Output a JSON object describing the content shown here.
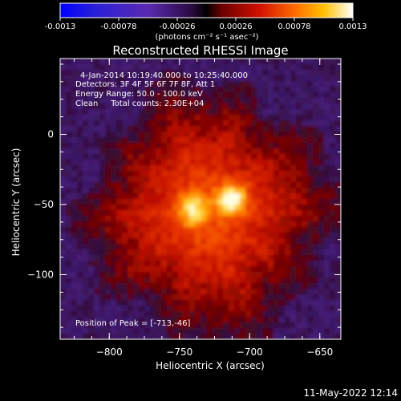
{
  "colorbar": {
    "tick_labels": [
      "-0.0013",
      "-0.00078",
      "-0.00026",
      "0.00026",
      "0.00078",
      "0.0013"
    ],
    "units": "(photons cm⁻² s⁻¹ asec⁻²)"
  },
  "chart_data": {
    "type": "heatmap",
    "title": "Reconstructed RHESSI Image",
    "xlabel": "Heliocentric X (arcsec)",
    "ylabel": "Heliocentric Y (arcsec)",
    "xlim": [
      -835,
      -635
    ],
    "ylim": [
      -146,
      54
    ],
    "x_ticks": [
      -800,
      -750,
      -700,
      -650
    ],
    "y_ticks": [
      -100,
      -50,
      0
    ],
    "colorbar_range": [
      -0.0013,
      0.0013
    ],
    "peak": {
      "x": -713,
      "y": -46
    },
    "secondary_source": {
      "x": -740,
      "y": -54
    },
    "info_lines": [
      "4-Jan-2014 10:19:40.000 to 10:25:40.000",
      "Detectors: 3F 4F 5F 6F 7F 8F, Att 1",
      "Energy Range: 50.0 - 100.0 keV",
      "Clean     Total counts: 2.30E+04"
    ],
    "peak_label": "Position of Peak = [-713,-46]"
  },
  "footer": {
    "date": "11-May-2022 12:14"
  }
}
